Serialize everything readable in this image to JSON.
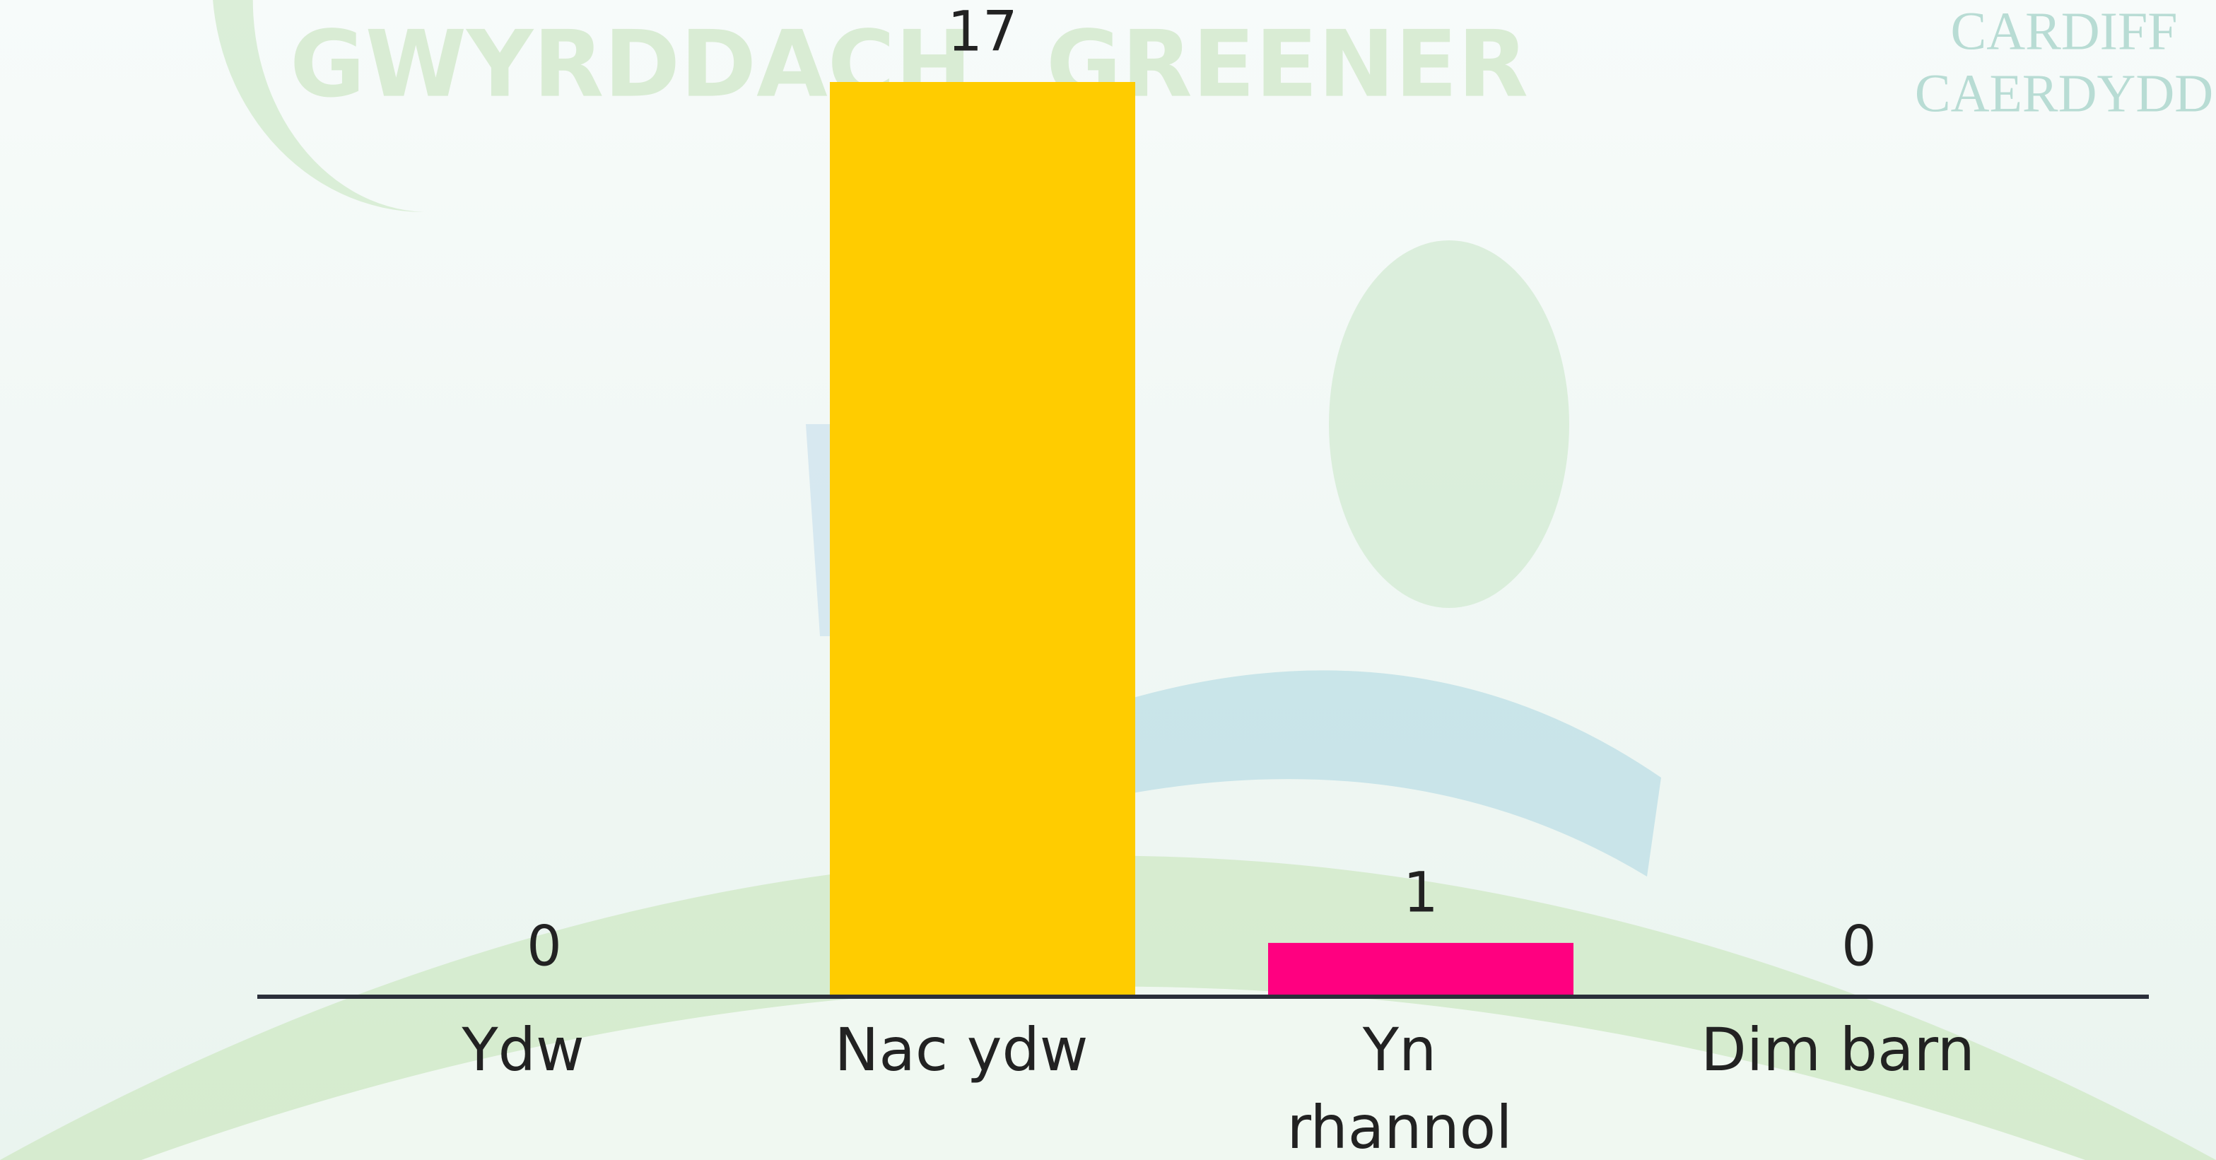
{
  "chart_data": {
    "type": "bar",
    "categories": [
      "Ydw",
      "Nac ydw",
      "Yn rhannol",
      "Dim barn"
    ],
    "values": [
      0,
      17,
      1,
      0
    ],
    "colors": [
      "#4a7cdb",
      "#ffcc00",
      "#ff0080",
      "#36c77a"
    ],
    "ylim": [
      0,
      17
    ]
  },
  "background": {
    "slogan_welsh": "GWYRDDACH",
    "slogan_english": "GREENER",
    "logo": [
      "CARDIFF",
      "CAERDYDD"
    ]
  }
}
